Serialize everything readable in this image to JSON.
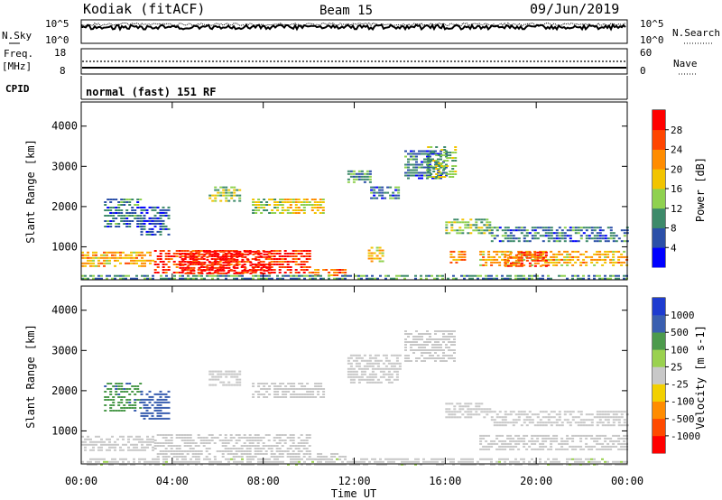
{
  "header": {
    "radar": "Kodiak (fitACF)",
    "beam": "Beam 15",
    "date": "09/Jun/2019"
  },
  "strip_noise": {
    "left_label": "N.Sky",
    "right_label": "N.Search",
    "left_ticks": [
      "10^5",
      "10^0"
    ],
    "right_ticks": [
      "10^5",
      "10^0"
    ]
  },
  "strip_freq": {
    "left_label_1": "Freq.",
    "left_label_2": "[MHz]",
    "right_label": "Nave",
    "left_ticks": [
      "18",
      "8"
    ],
    "right_ticks": [
      "60",
      "0"
    ]
  },
  "strip_cpid": {
    "label": "CPID",
    "text": "normal (fast) 151 RF"
  },
  "colors": {
    "power": [
      "#0000ff",
      "#2b4fa8",
      "#3d8a6a",
      "#8fd14f",
      "#f2c400",
      "#ff8c00",
      "#ff4500",
      "#ff0000"
    ],
    "velocity": [
      "#ff0000",
      "#ff4a00",
      "#ff8c00",
      "#f2d000",
      "#c8c8c8",
      "#9ad14f",
      "#4c9a4c",
      "#3a5fb0",
      "#1e3cd0"
    ]
  },
  "chart_data": [
    {
      "type": "heatmap",
      "quantity": "power",
      "ylabel": "Slant Range [km]",
      "yticks": [
        1000,
        2000,
        3000,
        4000
      ],
      "ylim": [
        180,
        4600
      ],
      "colorbar": {
        "label": "Power [dB]",
        "ticks": [
          "4",
          "8",
          "12",
          "16",
          "20",
          "24",
          "28"
        ],
        "range": [
          0,
          32
        ]
      },
      "regions": [
        {
          "t0": 0.0,
          "t1": 3.2,
          "r0": 500,
          "r1": 880,
          "value": 20
        },
        {
          "t0": 3.2,
          "t1": 10.0,
          "r0": 380,
          "r1": 920,
          "value": 28
        },
        {
          "t0": 4.3,
          "t1": 8.3,
          "r0": 350,
          "r1": 900,
          "value": 30
        },
        {
          "t0": 10.0,
          "t1": 11.6,
          "r0": 250,
          "r1": 450,
          "value": 24
        },
        {
          "t0": 1.0,
          "t1": 2.6,
          "r0": 1500,
          "r1": 2200,
          "value": 8
        },
        {
          "t0": 2.6,
          "t1": 3.9,
          "r0": 1300,
          "r1": 2000,
          "value": 6
        },
        {
          "t0": 5.6,
          "t1": 7.0,
          "r0": 2100,
          "r1": 2500,
          "value": 14
        },
        {
          "t0": 7.5,
          "t1": 8.8,
          "r0": 1850,
          "r1": 2200,
          "value": 14
        },
        {
          "t0": 8.8,
          "t1": 10.6,
          "r0": 1850,
          "r1": 2200,
          "value": 18
        },
        {
          "t0": 11.7,
          "t1": 12.7,
          "r0": 2600,
          "r1": 2900,
          "value": 10
        },
        {
          "t0": 12.7,
          "t1": 14.0,
          "r0": 2200,
          "r1": 2500,
          "value": 8
        },
        {
          "t0": 14.2,
          "t1": 16.0,
          "r0": 2700,
          "r1": 3400,
          "value": 8
        },
        {
          "t0": 15.2,
          "t1": 16.4,
          "r0": 2700,
          "r1": 3500,
          "value": 14
        },
        {
          "t0": 16.0,
          "t1": 18.0,
          "r0": 1300,
          "r1": 1700,
          "value": 14
        },
        {
          "t0": 18.0,
          "t1": 24.0,
          "r0": 1100,
          "r1": 1500,
          "value": 8
        },
        {
          "t0": 17.5,
          "t1": 24.0,
          "r0": 500,
          "r1": 900,
          "value": 20
        },
        {
          "t0": 18.6,
          "t1": 20.4,
          "r0": 500,
          "r1": 880,
          "value": 26
        },
        {
          "t0": 12.6,
          "t1": 13.3,
          "r0": 600,
          "r1": 1000,
          "value": 20
        },
        {
          "t0": 16.2,
          "t1": 16.8,
          "r0": 600,
          "r1": 900,
          "value": 22
        },
        {
          "t0": 0.0,
          "t1": 24.0,
          "r0": 180,
          "r1": 300,
          "value": 10
        }
      ]
    },
    {
      "type": "heatmap",
      "quantity": "velocity",
      "ylabel": "Slant Range [km]",
      "yticks": [
        1000,
        2000,
        3000,
        4000
      ],
      "ylim": [
        180,
        4600
      ],
      "colorbar": {
        "label": "Velocity [m s-1]",
        "ticks": [
          "1000",
          "500",
          "100",
          "25",
          "-25",
          "-100",
          "-500",
          "-1000"
        ],
        "range": [
          -1200,
          1200
        ]
      },
      "regions": [
        {
          "t0": 0.0,
          "t1": 3.2,
          "r0": 500,
          "r1": 880,
          "value": 0
        },
        {
          "t0": 3.2,
          "t1": 10.0,
          "r0": 380,
          "r1": 920,
          "value": 0
        },
        {
          "t0": 10.0,
          "t1": 11.6,
          "r0": 250,
          "r1": 450,
          "value": 0
        },
        {
          "t0": 1.0,
          "t1": 2.6,
          "r0": 1500,
          "r1": 2200,
          "value": 600
        },
        {
          "t0": 2.6,
          "t1": 3.9,
          "r0": 1300,
          "r1": 2000,
          "value": 800
        },
        {
          "t0": 5.6,
          "t1": 7.0,
          "r0": 2100,
          "r1": 2500,
          "value": 0
        },
        {
          "t0": 7.5,
          "t1": 10.6,
          "r0": 1850,
          "r1": 2200,
          "value": 0
        },
        {
          "t0": 11.7,
          "t1": 14.0,
          "r0": 2200,
          "r1": 2900,
          "value": 0
        },
        {
          "t0": 14.2,
          "t1": 16.4,
          "r0": 2700,
          "r1": 3500,
          "value": 0
        },
        {
          "t0": 16.0,
          "t1": 18.0,
          "r0": 1300,
          "r1": 1700,
          "value": 0
        },
        {
          "t0": 18.0,
          "t1": 24.0,
          "r0": 1100,
          "r1": 1500,
          "value": 0
        },
        {
          "t0": 17.5,
          "t1": 24.0,
          "r0": 500,
          "r1": 900,
          "value": 0
        },
        {
          "t0": 0.0,
          "t1": 24.0,
          "r0": 180,
          "r1": 320,
          "value": 60
        }
      ]
    }
  ],
  "x_axis": {
    "label": "Time UT",
    "ticks": [
      "00:00",
      "04:00",
      "08:00",
      "12:00",
      "16:00",
      "20:00",
      "00:00"
    ],
    "range_hours": [
      0,
      24
    ]
  }
}
